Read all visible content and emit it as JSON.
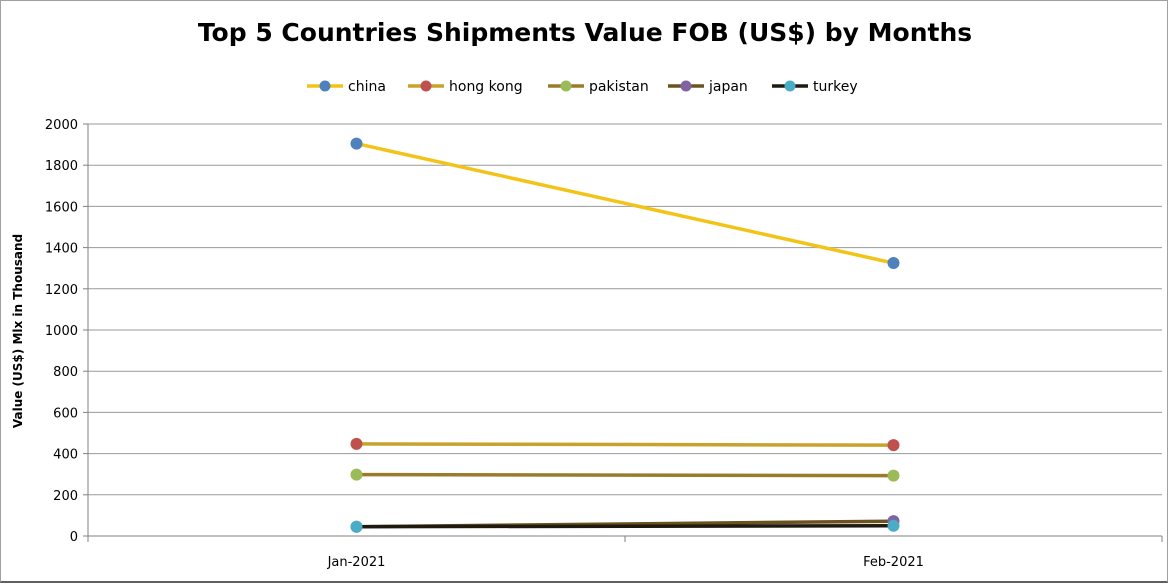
{
  "chart_data": {
    "type": "line",
    "title": "Top 5 Countries Shipments Value FOB (US$) by Months",
    "xlabel": "",
    "ylabel": "Value (US$) Mlx in Thousand",
    "categories": [
      "Jan-2021",
      "Feb-2021"
    ],
    "ylim": [
      0,
      2000
    ],
    "yticks": [
      0,
      200,
      400,
      600,
      800,
      1000,
      1200,
      1400,
      1600,
      1800,
      2000
    ],
    "grid": true,
    "legend_position": "top",
    "series": [
      {
        "name": "china",
        "values": [
          1905,
          1325
        ],
        "line_color": "#f2c418",
        "marker_color": "#4f81bd"
      },
      {
        "name": "hong kong",
        "values": [
          447,
          441
        ],
        "line_color": "#c9a22b",
        "marker_color": "#c0504d"
      },
      {
        "name": "pakistan",
        "values": [
          298,
          293
        ],
        "line_color": "#9a7b2a",
        "marker_color": "#9bbb59"
      },
      {
        "name": "japan",
        "values": [
          45,
          72
        ],
        "line_color": "#6b5320",
        "marker_color": "#8064a2"
      },
      {
        "name": "turkey",
        "values": [
          45,
          50
        ],
        "line_color": "#1e1a10",
        "marker_color": "#4bacc6"
      }
    ]
  }
}
